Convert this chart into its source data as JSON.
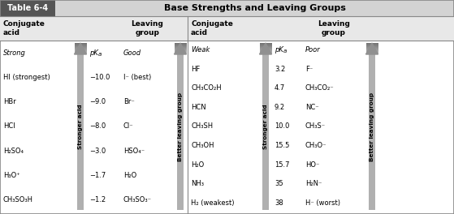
{
  "title_box": "Table 6-4",
  "title_text": "Base Strengths and Leaving Groups",
  "left_conjugate": [
    "HI (strongest)",
    "HBr",
    "HCl",
    "H₂SO₄",
    "H₃O⁺",
    "CH₃SO₃H"
  ],
  "left_pka_ordered": [
    "−10.0",
    "−9.0",
    "−8.0",
    "−3.0",
    "−1.7",
    "−1.2"
  ],
  "left_leaving": [
    "I⁻ (best)",
    "Br⁻",
    "Cl⁻",
    "HSO₄⁻",
    "H₂O",
    "CH₃SO₃⁻"
  ],
  "right_conjugate": [
    "HF",
    "CH₃CO₂H",
    "HCN",
    "CH₃SH",
    "CH₃OH",
    "H₂O",
    "NH₃",
    "H₂ (weakest)"
  ],
  "right_pka": [
    "3.2",
    "4.7",
    "9.2",
    "10.0",
    "15.5",
    "15.7",
    "35",
    "38"
  ],
  "right_leaving": [
    "F⁻",
    "CH₃CO₂⁻",
    "NC⁻",
    "CH₃S⁻",
    "CH₃O⁻",
    "HO⁻",
    "H₂N⁻",
    "H⁻ (worst)"
  ],
  "arrow_color": "#b8b8b8",
  "header_bg": "#d3d3d3",
  "title_bg": "#555555",
  "title_fg": "#ffffff",
  "border_color": "#888888"
}
